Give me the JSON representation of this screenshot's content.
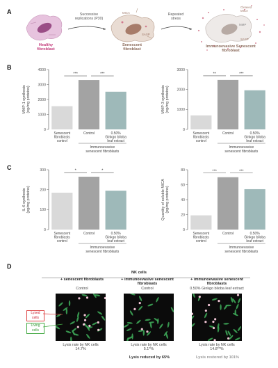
{
  "panels": {
    "a": "A",
    "b": "B",
    "c": "C",
    "d": "D"
  },
  "flow": {
    "healthy": "Healthy\nfibroblast",
    "arrow1": "Successive\nreplications (P30)",
    "senescent": "Senescent\nfibroblast",
    "arrow2": "Repeated\nstress",
    "immuno": "Immunoevasive Senescent\nfibroblast",
    "micro_labels": {
      "mica": "MICA",
      "sasp": "SASP",
      "cleaved": "Cleaved\nMICA",
      "mmp": "MMP",
      "sasp2": "SASP"
    }
  },
  "colors": {
    "light": "#d9d9d9",
    "dark": "#a3a3a3",
    "teal": "#9eb9b9",
    "pink": "#c23a7a"
  },
  "chart_data": [
    {
      "type": "bar",
      "ylabel": "MMP-1 synthesis\n(ng/mg proteins)",
      "ylim": [
        0,
        4000
      ],
      "yticks": [
        0,
        1000,
        2000,
        3000,
        4000
      ],
      "categories": [
        "Senescent\nfibroblasts\ncontrol",
        "Control",
        "0.50%\nGinkgo biloba\nleaf extract"
      ],
      "values": [
        1550,
        3300,
        2520
      ],
      "group_label": "Immunoevasive\nsenescent fibroblasts",
      "significance": [
        "***",
        "***"
      ]
    },
    {
      "type": "bar",
      "ylabel": "MMP-3 synthesis\n(ng/mg proteins)",
      "ylim": [
        0,
        3000
      ],
      "yticks": [
        0,
        1000,
        2000,
        3000
      ],
      "categories": [
        "Senescent\nfibroblasts\ncontrol",
        "Control",
        "0.50%\nGinkgo biloba\nleaf extract"
      ],
      "values": [
        700,
        2480,
        1960
      ],
      "group_label": "Immunoevasive\nsenescent fibroblasts",
      "significance": [
        "**",
        "***"
      ]
    },
    {
      "type": "bar",
      "ylabel": "IL-6 synthesis\n(pg/mg proteins)",
      "ylim": [
        0,
        300
      ],
      "yticks": [
        0,
        100,
        200,
        300
      ],
      "categories": [
        "Senescent\nfibroblasts\ncontrol",
        "Control",
        "0.50%\nGinkgo biloba\nleaf extract"
      ],
      "values": [
        185,
        265,
        195
      ],
      "group_label": "Immunoevasive\nsenescent fibroblasts",
      "significance": [
        "*",
        "*"
      ]
    },
    {
      "type": "bar",
      "ylabel": "Quantity of soluble MICA\n(pg/mg proteins)",
      "ylim": [
        0,
        80
      ],
      "yticks": [
        0,
        20,
        40,
        60,
        80
      ],
      "categories": [
        "Senescent\nfibroblasts\ncontrol",
        "Control",
        "0.50%\nGinkgo biloba\nleaf extract"
      ],
      "values": [
        19,
        70,
        54
      ],
      "group_label": "Immunoevasive\nsenescent fibroblasts",
      "significance": [
        "***",
        "***"
      ]
    }
  ],
  "panel_d": {
    "title": "NK cells",
    "columns": [
      {
        "head": "+ senescent fibroblasts",
        "sub": "Control",
        "caption": "Lysis rate by NK cells\n14.7%"
      },
      {
        "head": "+ immunoevasive senescent\nfibroblasts",
        "sub": "Control",
        "caption": "Lysis rate by NK cells\n5.1*%"
      },
      {
        "head": "+ immunoevasive senescent\nfibroblasts",
        "sub": "0.50% Ginkgo biloba leaf extract",
        "caption": "Lysis rate by NK cells\n14.8**%"
      }
    ],
    "legend": {
      "lysed": "Lysed\ncells",
      "living": "Living\ncells"
    },
    "note_reduced": "Lysis reduced by 65%",
    "note_restored": "Lysis restored by 101%"
  }
}
